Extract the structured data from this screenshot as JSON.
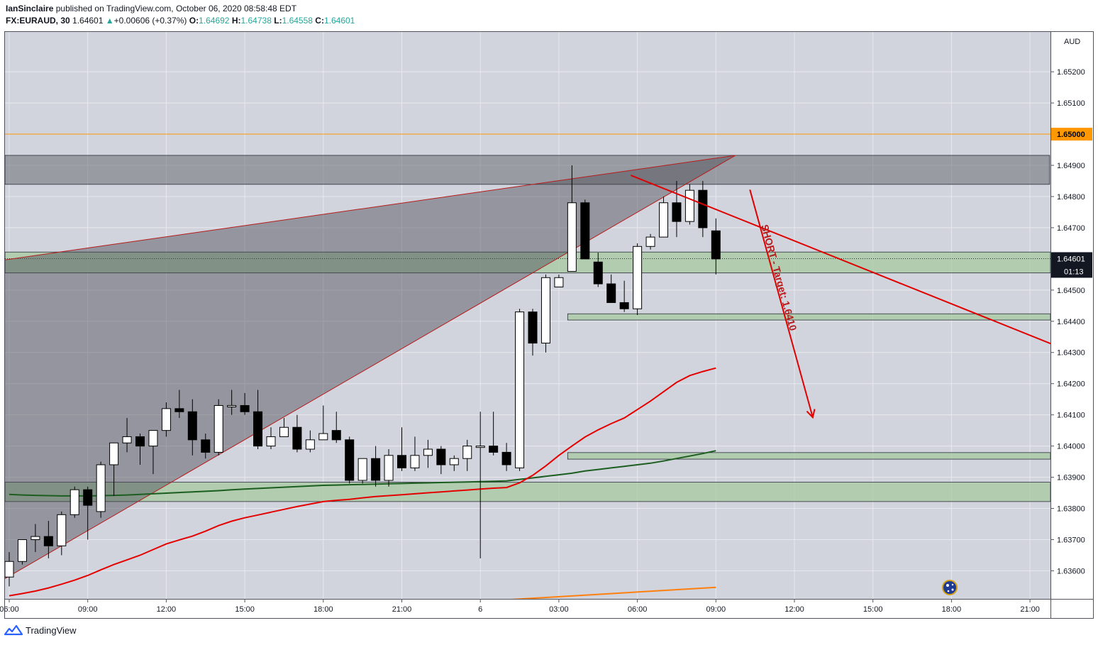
{
  "header": {
    "publisher": "IanSinclaire",
    "published_text": "published on TradingView.com, October 06, 2020 08:58:48 EDT",
    "symbol": "FX:EURAUD, 30",
    "last": "1.64601",
    "change_arrow": "▲",
    "change": "+0.00606 (+0.37%)",
    "o_label": "O:",
    "o_value": "1.64692",
    "h_label": "H:",
    "h_value": "1.64738",
    "l_label": "L:",
    "l_value": "1.64558",
    "c_label": "C:",
    "c_value": "1.64601"
  },
  "footer": {
    "brand": "TradingView",
    "logo_icon": "tradingview-logo-icon"
  },
  "colors": {
    "background": "#d1d4dc",
    "grid": "#e8e9ee",
    "candle_up": "#ffffff",
    "candle_down": "#000000",
    "ema_red": "#e50000",
    "ema_green": "#1b5e20",
    "ema_orange": "#ff7f0e",
    "zone_green": "#a5c9a0",
    "zone_grey": "#6b6b75",
    "level_orange": "#ff9800",
    "annotation_red": "#e00000"
  },
  "chart_data": {
    "type": "candlestick",
    "currency": "AUD",
    "ylim": [
      1.6351,
      1.6533
    ],
    "y_ticks": [
      "1.65200",
      "1.65100",
      "1.64900",
      "1.64800",
      "1.64700",
      "1.64500",
      "1.64400",
      "1.64300",
      "1.64200",
      "1.64100",
      "1.64000",
      "1.63900",
      "1.63800",
      "1.63700",
      "1.63600"
    ],
    "x_ticks": [
      "06:00",
      "09:00",
      "12:00",
      "15:00",
      "18:00",
      "21:00",
      "6",
      "03:00",
      "06:00",
      "09:00",
      "12:00",
      "15:00",
      "18:00",
      "21:00"
    ],
    "x_tick_bars": [
      0,
      6,
      12,
      18,
      24,
      30,
      36,
      42,
      48,
      54,
      60,
      66,
      72,
      78
    ],
    "candles": [
      {
        "o": 1.6358,
        "h": 1.6366,
        "l": 1.6355,
        "c": 1.6363
      },
      {
        "o": 1.6363,
        "h": 1.6369,
        "l": 1.6362,
        "c": 1.637
      },
      {
        "o": 1.637,
        "h": 1.6375,
        "l": 1.6366,
        "c": 1.6371
      },
      {
        "o": 1.6371,
        "h": 1.6376,
        "l": 1.6364,
        "c": 1.6368
      },
      {
        "o": 1.6368,
        "h": 1.6379,
        "l": 1.6365,
        "c": 1.6378
      },
      {
        "o": 1.6378,
        "h": 1.6387,
        "l": 1.6377,
        "c": 1.6386
      },
      {
        "o": 1.6386,
        "h": 1.6387,
        "l": 1.637,
        "c": 1.6381
      },
      {
        "o": 1.6379,
        "h": 1.6395,
        "l": 1.6377,
        "c": 1.6394
      },
      {
        "o": 1.6394,
        "h": 1.6401,
        "l": 1.6384,
        "c": 1.6401
      },
      {
        "o": 1.6401,
        "h": 1.6409,
        "l": 1.6398,
        "c": 1.6403
      },
      {
        "o": 1.6403,
        "h": 1.6404,
        "l": 1.6394,
        "c": 1.64
      },
      {
        "o": 1.64,
        "h": 1.6405,
        "l": 1.6391,
        "c": 1.6405
      },
      {
        "o": 1.6405,
        "h": 1.6414,
        "l": 1.6403,
        "c": 1.6412
      },
      {
        "o": 1.6412,
        "h": 1.6418,
        "l": 1.6409,
        "c": 1.6411
      },
      {
        "o": 1.6411,
        "h": 1.6415,
        "l": 1.6397,
        "c": 1.6402
      },
      {
        "o": 1.6402,
        "h": 1.6404,
        "l": 1.6396,
        "c": 1.6398
      },
      {
        "o": 1.6398,
        "h": 1.6415,
        "l": 1.6397,
        "c": 1.6413
      },
      {
        "o": 1.6413,
        "h": 1.6418,
        "l": 1.641,
        "c": 1.6413
      },
      {
        "o": 1.6413,
        "h": 1.6417,
        "l": 1.641,
        "c": 1.6411
      },
      {
        "o": 1.6411,
        "h": 1.6418,
        "l": 1.6399,
        "c": 1.64
      },
      {
        "o": 1.64,
        "h": 1.6406,
        "l": 1.6399,
        "c": 1.6403
      },
      {
        "o": 1.6403,
        "h": 1.6409,
        "l": 1.6403,
        "c": 1.6406
      },
      {
        "o": 1.6406,
        "h": 1.641,
        "l": 1.6398,
        "c": 1.6399
      },
      {
        "o": 1.6399,
        "h": 1.6405,
        "l": 1.6398,
        "c": 1.6402
      },
      {
        "o": 1.6402,
        "h": 1.6413,
        "l": 1.6402,
        "c": 1.6404
      },
      {
        "o": 1.6405,
        "h": 1.6411,
        "l": 1.6401,
        "c": 1.6402
      },
      {
        "o": 1.6402,
        "h": 1.6403,
        "l": 1.6388,
        "c": 1.6389
      },
      {
        "o": 1.6389,
        "h": 1.6395,
        "l": 1.6388,
        "c": 1.6396
      },
      {
        "o": 1.6396,
        "h": 1.64,
        "l": 1.6387,
        "c": 1.6389
      },
      {
        "o": 1.6389,
        "h": 1.6399,
        "l": 1.6387,
        "c": 1.6397
      },
      {
        "o": 1.6397,
        "h": 1.6406,
        "l": 1.6392,
        "c": 1.6393
      },
      {
        "o": 1.6393,
        "h": 1.6403,
        "l": 1.6392,
        "c": 1.6397
      },
      {
        "o": 1.6397,
        "h": 1.6402,
        "l": 1.6393,
        "c": 1.6399
      },
      {
        "o": 1.6399,
        "h": 1.64,
        "l": 1.6391,
        "c": 1.6394
      },
      {
        "o": 1.6394,
        "h": 1.6397,
        "l": 1.6392,
        "c": 1.6396
      },
      {
        "o": 1.6396,
        "h": 1.6402,
        "l": 1.6392,
        "c": 1.64
      },
      {
        "o": 1.64,
        "h": 1.6411,
        "l": 1.6364,
        "c": 1.64
      },
      {
        "o": 1.64,
        "h": 1.6411,
        "l": 1.6397,
        "c": 1.6398
      },
      {
        "o": 1.6398,
        "h": 1.6401,
        "l": 1.6392,
        "c": 1.6394
      },
      {
        "o": 1.6393,
        "h": 1.6444,
        "l": 1.6392,
        "c": 1.6443
      },
      {
        "o": 1.6443,
        "h": 1.6444,
        "l": 1.6429,
        "c": 1.6433
      },
      {
        "o": 1.6433,
        "h": 1.6455,
        "l": 1.643,
        "c": 1.6454
      },
      {
        "o": 1.6451,
        "h": 1.6455,
        "l": 1.6452,
        "c": 1.6454
      },
      {
        "o": 1.6456,
        "h": 1.649,
        "l": 1.6457,
        "c": 1.6478
      },
      {
        "o": 1.6478,
        "h": 1.6479,
        "l": 1.646,
        "c": 1.646
      },
      {
        "o": 1.6459,
        "h": 1.6462,
        "l": 1.6451,
        "c": 1.6452
      },
      {
        "o": 1.6452,
        "h": 1.6455,
        "l": 1.6446,
        "c": 1.6446
      },
      {
        "o": 1.6446,
        "h": 1.6453,
        "l": 1.6443,
        "c": 1.6444
      },
      {
        "o": 1.6444,
        "h": 1.6465,
        "l": 1.6442,
        "c": 1.6464
      },
      {
        "o": 1.6464,
        "h": 1.6468,
        "l": 1.6463,
        "c": 1.6467
      },
      {
        "o": 1.6467,
        "h": 1.648,
        "l": 1.6467,
        "c": 1.6478
      },
      {
        "o": 1.6478,
        "h": 1.6485,
        "l": 1.6467,
        "c": 1.6472
      },
      {
        "o": 1.6472,
        "h": 1.6484,
        "l": 1.6471,
        "c": 1.6482
      },
      {
        "o": 1.6482,
        "h": 1.6485,
        "l": 1.6467,
        "c": 1.647
      },
      {
        "o": 1.6469,
        "h": 1.6473,
        "l": 1.6455,
        "c": 1.646
      }
    ],
    "ema_red": [
      1.6352,
      1.63527,
      1.63535,
      1.63545,
      1.63557,
      1.6357,
      1.63585,
      1.63603,
      1.6362,
      1.63635,
      1.6365,
      1.63668,
      1.63686,
      1.63699,
      1.63711,
      1.63727,
      1.63745,
      1.63759,
      1.6377,
      1.63779,
      1.63788,
      1.63797,
      1.63806,
      1.63814,
      1.63822,
      1.63826,
      1.63829,
      1.63834,
      1.63838,
      1.63841,
      1.63844,
      1.63847,
      1.6385,
      1.63853,
      1.63856,
      1.63859,
      1.63862,
      1.63865,
      1.63867,
      1.63882,
      1.63906,
      1.63936,
      1.6397,
      1.64,
      1.64029,
      1.64052,
      1.64072,
      1.6409,
      1.64117,
      1.64144,
      1.64174,
      1.64204,
      1.64226,
      1.64239,
      1.6425
    ],
    "ema_green": [
      1.63845,
      1.63843,
      1.63842,
      1.63841,
      1.6384,
      1.6384,
      1.6384,
      1.63841,
      1.63842,
      1.63843,
      1.63845,
      1.63847,
      1.63849,
      1.63851,
      1.63853,
      1.63855,
      1.63857,
      1.6386,
      1.63862,
      1.63864,
      1.63866,
      1.63868,
      1.6387,
      1.63872,
      1.63874,
      1.63875,
      1.63876,
      1.63877,
      1.63878,
      1.63879,
      1.6388,
      1.63881,
      1.63882,
      1.63883,
      1.63884,
      1.63885,
      1.63886,
      1.63887,
      1.63888,
      1.63893,
      1.63898,
      1.63903,
      1.63908,
      1.63913,
      1.6392,
      1.63925,
      1.6393,
      1.63935,
      1.6394,
      1.63945,
      1.63952,
      1.6396,
      1.63968,
      1.63976,
      1.63985
    ],
    "ema_orange_points": [
      {
        "bar": 38,
        "value": 1.63507
      },
      {
        "bar": 54,
        "value": 1.63547
      }
    ],
    "horizontal_level": 1.65,
    "current_price": "1.64601",
    "countdown": "01:13",
    "price_label_current": "1.64601",
    "price_label_level": "1.65000",
    "zones": [
      {
        "kind": "resistance",
        "color": "grey",
        "y_top": 1.64932,
        "y_bottom": 1.64839,
        "bar_start": 0,
        "bar_end": 79.5
      },
      {
        "kind": "support",
        "color": "green",
        "y_top": 1.64622,
        "y_bottom": 1.64555,
        "bar_start": 0,
        "bar_end": 80.5
      },
      {
        "kind": "support",
        "color": "green",
        "y_top": 1.64424,
        "y_bottom": 1.64404,
        "bar_start": 43,
        "bar_end": 80.5
      },
      {
        "kind": "support",
        "color": "green",
        "y_top": 1.63979,
        "y_bottom": 1.63958,
        "bar_start": 43,
        "bar_end": 80.5
      },
      {
        "kind": "support",
        "color": "green",
        "y_top": 1.63884,
        "y_bottom": 1.63822,
        "bar_start": 0,
        "bar_end": 80.5
      }
    ],
    "wedge": {
      "apex_bar": 55.5,
      "apex_value": 1.64932,
      "upper_start_value": 1.64597,
      "lower_start_value": 1.63575,
      "start_bar": -0.5
    },
    "trendline": {
      "from_bar": 47.5,
      "from_value": 1.64868,
      "to_bar": 80.5,
      "to_value": 1.64313
    },
    "arrow": {
      "from_bar": 56.6,
      "from_value": 1.64822,
      "to_bar": 61.4,
      "to_value": 1.64092
    },
    "annotation": "SHORT - Target: 1.6410",
    "flag_icon": "australia-flag-icon"
  }
}
